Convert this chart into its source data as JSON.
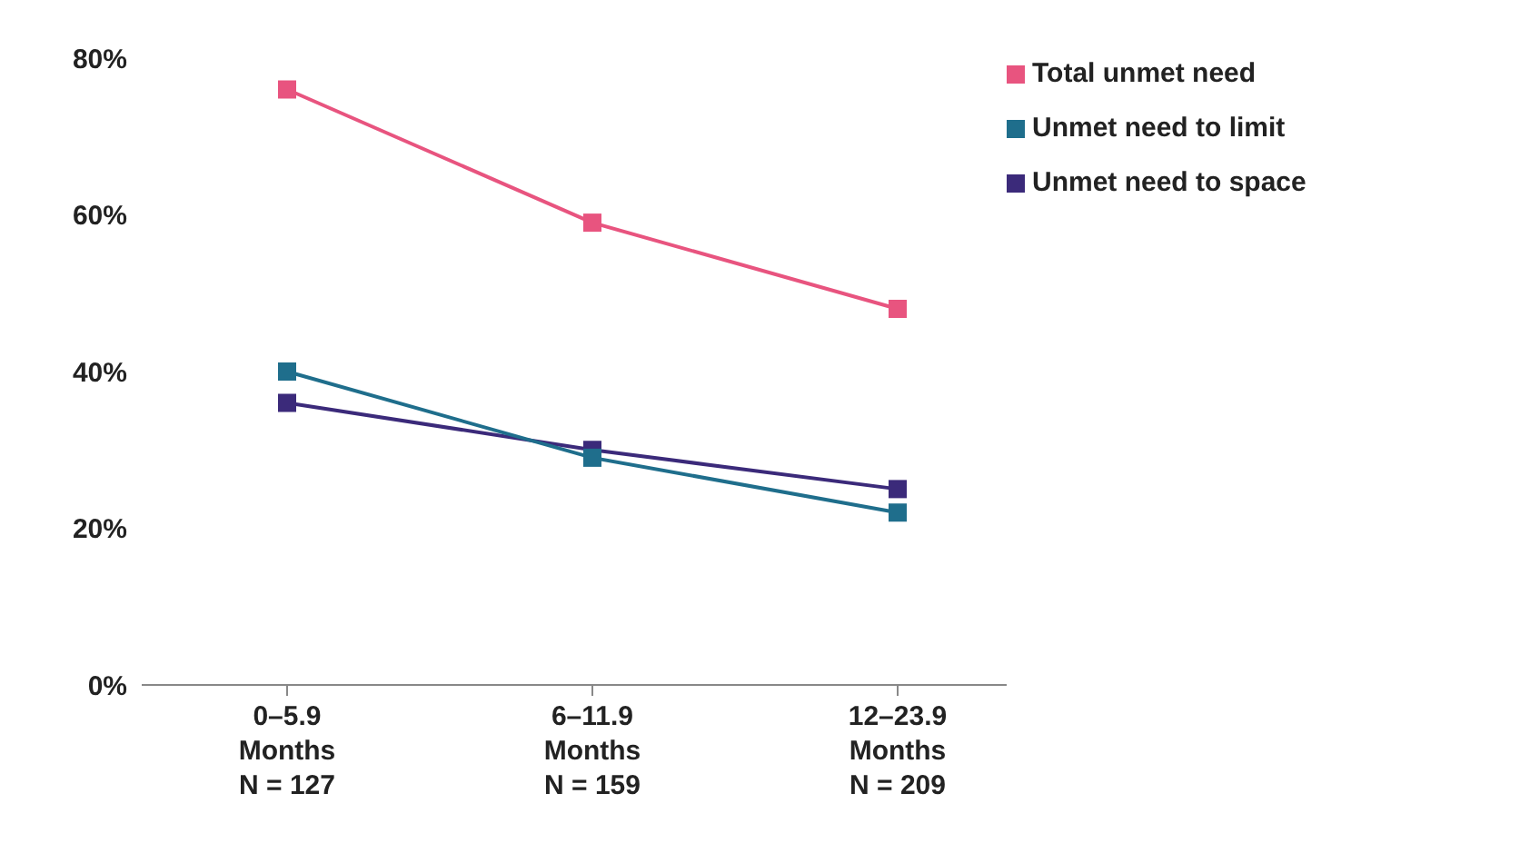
{
  "chart_data": {
    "type": "line",
    "categories": [
      "0–5.9\nMonths\nN = 127",
      "6–11.9\nMonths\nN = 159",
      "12–23.9\nMonths\nN = 209"
    ],
    "series": [
      {
        "name": "Total unmet need",
        "color": "#e8547f",
        "values": [
          76,
          59,
          48
        ]
      },
      {
        "name": "Unmet need to limit",
        "color": "#1f6e8c",
        "values": [
          40,
          29,
          22
        ]
      },
      {
        "name": "Unmet need to space",
        "color": "#3b2a7a",
        "values": [
          36,
          30,
          25
        ]
      }
    ],
    "ylim": [
      0,
      80
    ],
    "yticks": [
      {
        "value": 0,
        "label": "0%"
      },
      {
        "value": 20,
        "label": "20%"
      },
      {
        "value": 40,
        "label": "40%"
      },
      {
        "value": 60,
        "label": "60%"
      },
      {
        "value": 80,
        "label": "80%"
      }
    ],
    "grid": false,
    "legend": "top right",
    "marker": "square",
    "line_style": "solid"
  }
}
